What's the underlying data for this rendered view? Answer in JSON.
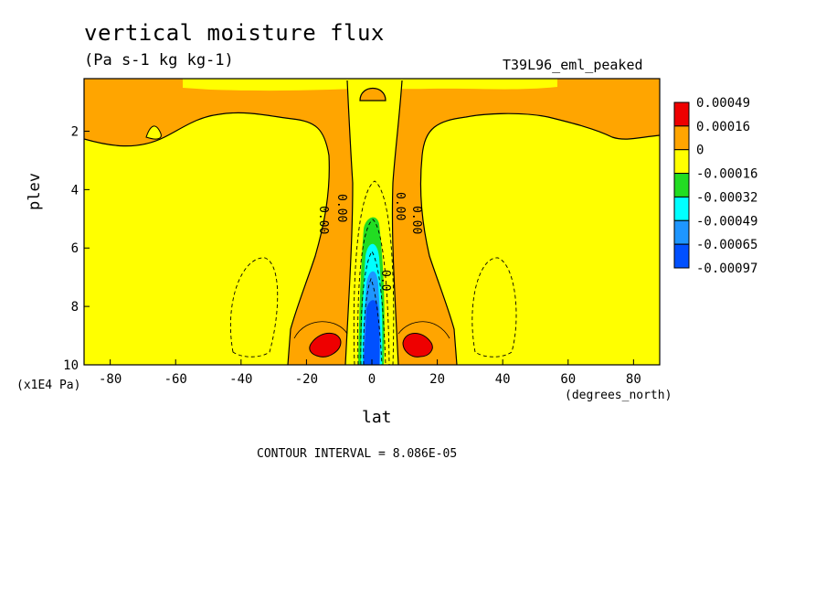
{
  "chart_data": {
    "type": "heatmap",
    "title": "vertical moisture flux",
    "subtitle": "(Pa s-1 kg kg-1)",
    "dataset": "T39L96_eml_peaked",
    "xlabel": "lat",
    "x_units": "(degrees_north)",
    "ylabel": "plev",
    "y_units": "(x1E4 Pa)",
    "xlim": [
      -88,
      88
    ],
    "ylim": [
      10,
      0.2
    ],
    "x_ticks": [
      "-80",
      "-60",
      "-40",
      "-20",
      "0",
      "20",
      "40",
      "60",
      "80"
    ],
    "x_tick_values": [
      -80,
      -60,
      -40,
      -20,
      0,
      20,
      40,
      60,
      80
    ],
    "y_ticks": [
      "2",
      "4",
      "6",
      "8",
      "10"
    ],
    "y_tick_values": [
      2,
      4,
      6,
      8,
      10
    ],
    "contour_interval": "CONTOUR INTERVAL = 8.086E-05",
    "contour_labels": [
      "0.00",
      "0.00",
      "0.00",
      "0.00",
      "0.0"
    ],
    "legend": {
      "labels": [
        "0.00049",
        "0.00016",
        "0",
        "-0.00016",
        "-0.00032",
        "-0.00049",
        "-0.00065",
        "-0.00097"
      ],
      "colors": [
        "#ee0000",
        "#ffa500",
        "#ffff00",
        "#22dd22",
        "#00ffff",
        "#1e96ff",
        "#0050ff"
      ]
    },
    "colors": {
      "strong_positive": "#ee0000",
      "positive": "#ffa500",
      "near_zero": "#ffff00",
      "weak_negative": "#22dd22",
      "negative": "#00ffff",
      "more_negative": "#1e96ff",
      "strong_negative": "#0050ff"
    }
  }
}
